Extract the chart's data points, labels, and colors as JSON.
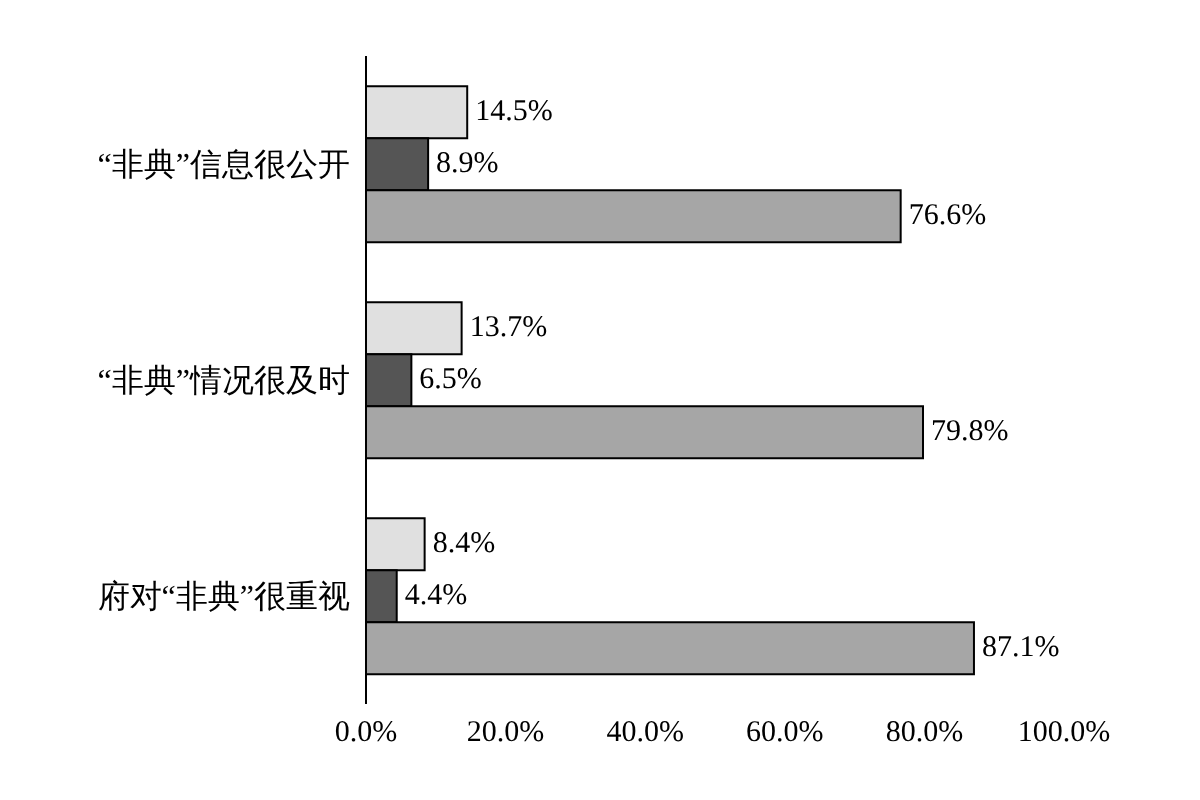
{
  "chart_data": {
    "type": "bar",
    "orientation": "horizontal",
    "categories": [
      "“非典”信息很公开",
      "“非典”情况很及时",
      "府对“非典”很重视"
    ],
    "series": [
      {
        "color": "#e0e0e0",
        "values": [
          14.5,
          13.7,
          8.4
        ],
        "value_labels": [
          "14.5%",
          "13.7%",
          "8.4%"
        ]
      },
      {
        "color": "#555555",
        "values": [
          8.9,
          6.5,
          4.4
        ],
        "value_labels": [
          "8.9%",
          "6.5%",
          "4.4%"
        ]
      },
      {
        "color": "#a6a6a6",
        "values": [
          76.6,
          79.8,
          87.1
        ],
        "value_labels": [
          "76.6%",
          "79.8%",
          "87.1%"
        ]
      }
    ],
    "xlim": [
      0,
      100
    ],
    "xticks": [
      {
        "value": 0,
        "label": "0.0%"
      },
      {
        "value": 20,
        "label": "20.0%"
      },
      {
        "value": 40,
        "label": "40.0%"
      },
      {
        "value": 60,
        "label": "60.0%"
      },
      {
        "value": 80,
        "label": "80.0%"
      },
      {
        "value": 100,
        "label": "100.0%"
      }
    ],
    "grid": false,
    "legend": false
  }
}
